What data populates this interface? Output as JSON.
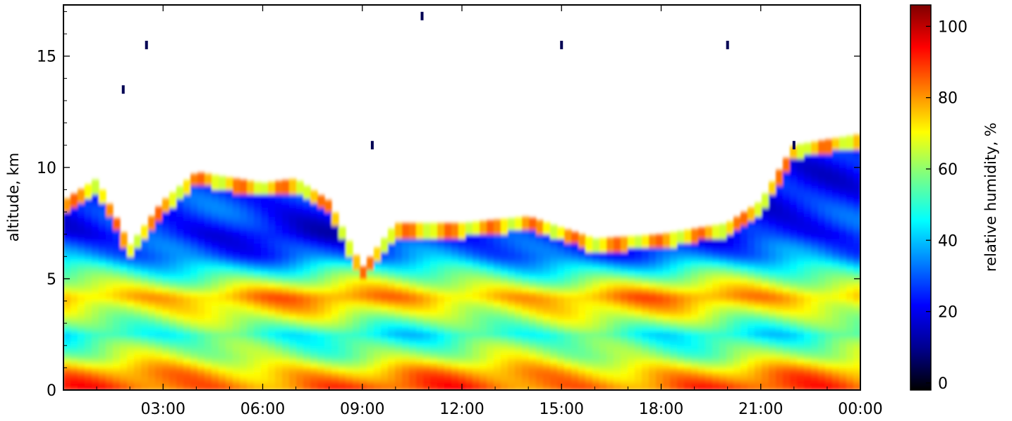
{
  "chart_data": {
    "type": "heatmap",
    "title": "",
    "xlabel": "",
    "ylabel": "altitude, km",
    "x_ticks": [
      "03:00",
      "06:00",
      "09:00",
      "12:00",
      "15:00",
      "18:00",
      "21:00",
      "00:00"
    ],
    "y_ticks": [
      0,
      5,
      10,
      15
    ],
    "xlim_hours": [
      0,
      24
    ],
    "ylim": [
      0,
      17.3
    ],
    "colorbar": {
      "label": "relative humidity, %",
      "ticks": [
        0,
        20,
        40,
        60,
        80,
        100
      ],
      "range": [
        -2,
        106
      ]
    },
    "colormap": [
      "#000000",
      "#00008f",
      "#0000ff",
      "#007fff",
      "#00ffff",
      "#7fff7f",
      "#ffff00",
      "#ff7f00",
      "#ff0000",
      "#7f0000"
    ],
    "humidity_layers": [
      {
        "altitude_km": 0.2,
        "rh": 85
      },
      {
        "altitude_km": 0.8,
        "rh": 78
      },
      {
        "altitude_km": 1.5,
        "rh": 62
      },
      {
        "altitude_km": 2.5,
        "rh": 48
      },
      {
        "altitude_km": 3.5,
        "rh": 68
      },
      {
        "altitude_km": 4.2,
        "rh": 80
      },
      {
        "altitude_km": 5.0,
        "rh": 58
      },
      {
        "altitude_km": 6.0,
        "rh": 32
      },
      {
        "altitude_km": 7.0,
        "rh": 22
      },
      {
        "altitude_km": 8.0,
        "rh": 25
      }
    ],
    "moist_top_km": [
      {
        "time_h": 0.0,
        "top_km": 8.5
      },
      {
        "time_h": 1.0,
        "top_km": 9.5
      },
      {
        "time_h": 2.0,
        "top_km": 6.5
      },
      {
        "time_h": 3.0,
        "top_km": 8.5
      },
      {
        "time_h": 4.0,
        "top_km": 9.8
      },
      {
        "time_h": 6.0,
        "top_km": 9.3
      },
      {
        "time_h": 7.0,
        "top_km": 9.5
      },
      {
        "time_h": 8.0,
        "top_km": 8.5
      },
      {
        "time_h": 9.0,
        "top_km": 5.5
      },
      {
        "time_h": 10.0,
        "top_km": 7.5
      },
      {
        "time_h": 12.0,
        "top_km": 7.5
      },
      {
        "time_h": 14.0,
        "top_km": 7.8
      },
      {
        "time_h": 16.0,
        "top_km": 6.8
      },
      {
        "time_h": 18.0,
        "top_km": 7.0
      },
      {
        "time_h": 20.0,
        "top_km": 7.5
      },
      {
        "time_h": 21.0,
        "top_km": 8.5
      },
      {
        "time_h": 22.0,
        "top_km": 11.0
      },
      {
        "time_h": 24.0,
        "top_km": 11.5
      }
    ],
    "isolated_dry_features": [
      {
        "time_h": 1.8,
        "altitude_km": 13.5,
        "rh": 5
      },
      {
        "time_h": 2.5,
        "altitude_km": 15.5,
        "rh": 5
      },
      {
        "time_h": 9.3,
        "altitude_km": 11.0,
        "rh": 5
      },
      {
        "time_h": 10.8,
        "altitude_km": 16.8,
        "rh": 5
      },
      {
        "time_h": 15.0,
        "altitude_km": 15.5,
        "rh": 5
      },
      {
        "time_h": 20.0,
        "altitude_km": 15.5,
        "rh": 5
      },
      {
        "time_h": 22.0,
        "altitude_km": 11.0,
        "rh": 5
      }
    ]
  }
}
